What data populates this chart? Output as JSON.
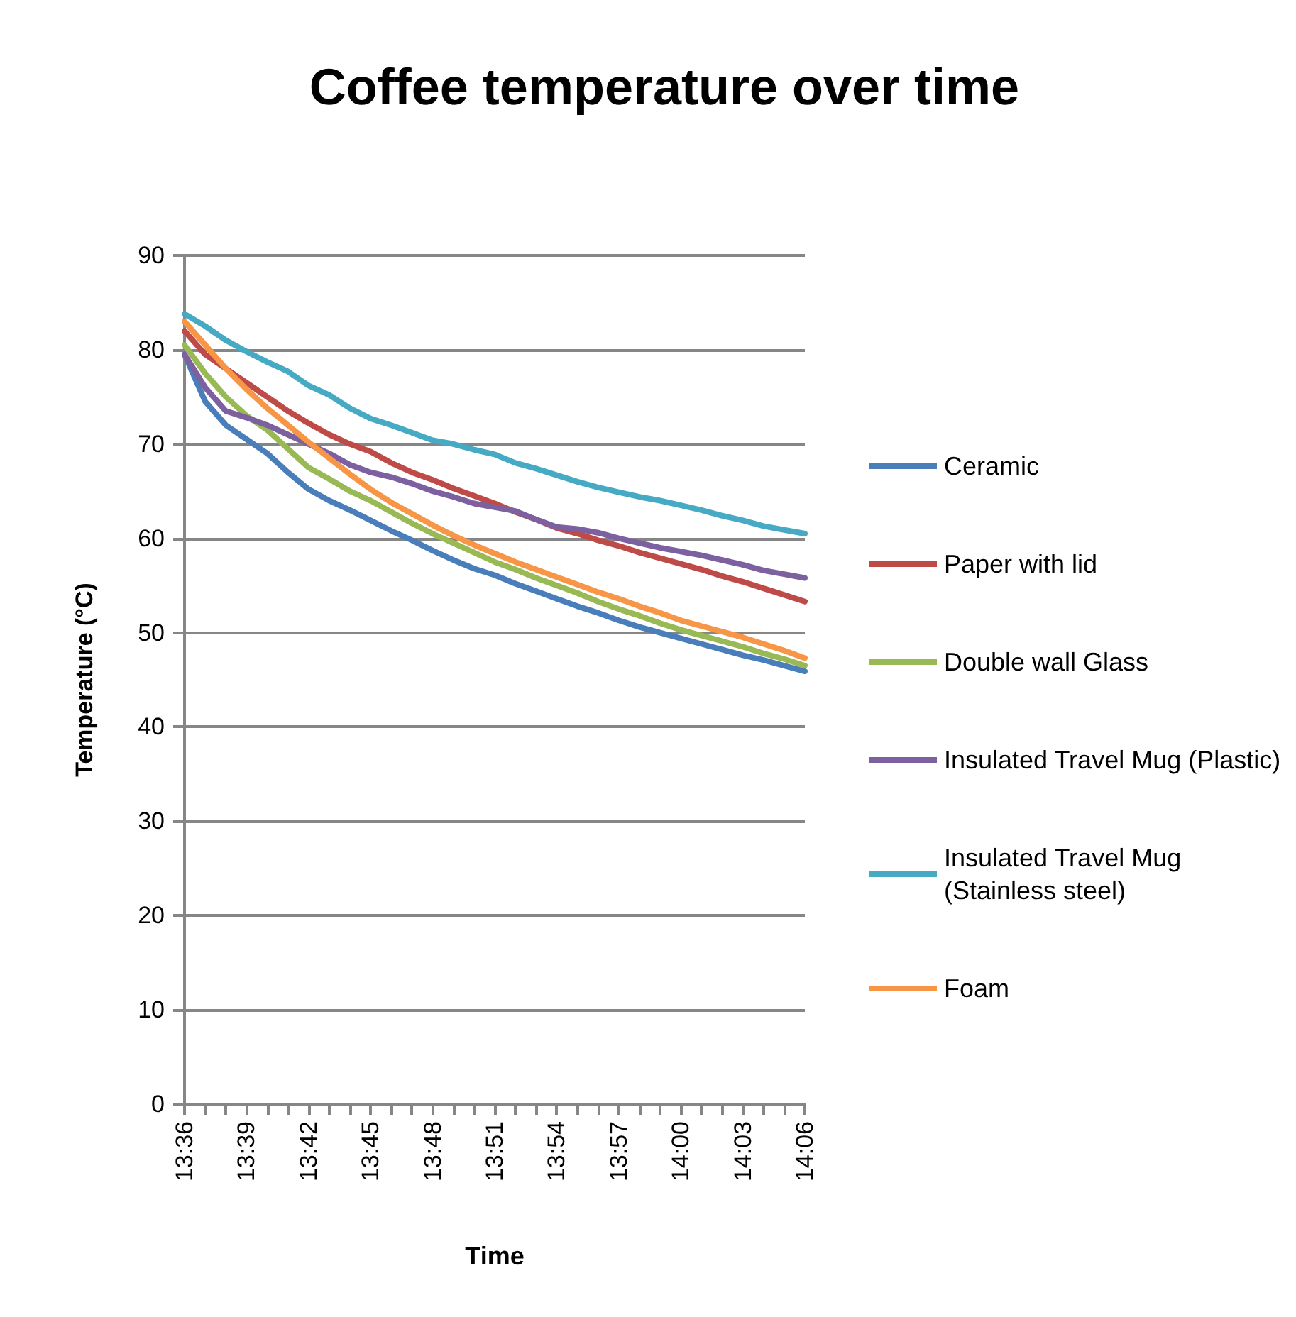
{
  "chart_data": {
    "type": "line",
    "title": "Coffee temperature over time",
    "xlabel": "Time",
    "ylabel": "Temperature (°C)",
    "categories": [
      "13:36",
      null,
      null,
      "13:39",
      null,
      null,
      "13:42",
      null,
      null,
      "13:45",
      null,
      null,
      "13:48",
      null,
      null,
      "13:51",
      null,
      null,
      "13:54",
      null,
      null,
      "13:57",
      null,
      null,
      "14:00",
      null,
      null,
      "14:03",
      null,
      null,
      "14:06"
    ],
    "series": [
      {
        "name": "Ceramic",
        "color": "#4a7ebb",
        "values": [
          79.5,
          74.5,
          72,
          70.5,
          69,
          67,
          65.2,
          64,
          63,
          61.9,
          60.8,
          59.8,
          58.7,
          57.7,
          56.8,
          56.1,
          55.2,
          54.4,
          53.6,
          52.8,
          52.1,
          51.3,
          50.6,
          50,
          49.4,
          48.8,
          48.2,
          47.6,
          47.1,
          46.5,
          45.9
        ]
      },
      {
        "name": "Paper with lid",
        "color": "#be4b48",
        "values": [
          82,
          79.5,
          78,
          76.5,
          75,
          73.5,
          72.2,
          71,
          70,
          69.2,
          68,
          67,
          66.2,
          65.3,
          64.5,
          63.7,
          62.8,
          62,
          61.1,
          60.5,
          59.8,
          59.2,
          58.5,
          57.9,
          57.3,
          56.7,
          56,
          55.4,
          54.7,
          54,
          53.3
        ]
      },
      {
        "name": "Double wall Glass",
        "color": "#98b954",
        "values": [
          80.5,
          77.5,
          75,
          73,
          71.5,
          69.5,
          67.5,
          66.3,
          65,
          64,
          62.8,
          61.6,
          60.5,
          59.5,
          58.5,
          57.5,
          56.7,
          55.8,
          55,
          54.2,
          53.3,
          52.5,
          51.8,
          51,
          50.3,
          49.7,
          49.1,
          48.5,
          47.8,
          47.2,
          46.5
        ]
      },
      {
        "name": "Insulated Travel Mug (Plastic)",
        "color": "#7d60a0",
        "values": [
          79.5,
          76,
          73.5,
          72.8,
          72,
          71,
          70,
          69,
          67.8,
          67,
          66.5,
          65.8,
          65,
          64.4,
          63.7,
          63.3,
          62.9,
          62,
          61.2,
          61,
          60.6,
          60,
          59.5,
          59,
          58.6,
          58.2,
          57.7,
          57.2,
          56.6,
          56.2,
          55.8
        ]
      },
      {
        "name": "Insulated Travel Mug (Stainless steel)",
        "color": "#46aac5",
        "values": [
          83.8,
          82.5,
          81,
          79.8,
          78.7,
          77.7,
          76.2,
          75.2,
          73.8,
          72.7,
          72,
          71.2,
          70.4,
          70,
          69.4,
          68.9,
          68,
          67.4,
          66.7,
          66,
          65.4,
          64.9,
          64.4,
          64,
          63.5,
          63,
          62.4,
          61.9,
          61.3,
          60.9,
          60.5
        ]
      },
      {
        "name": "Foam",
        "color": "#f79646",
        "values": [
          83,
          80.5,
          78,
          75.8,
          73.8,
          72,
          70.2,
          68.5,
          66.8,
          65.2,
          63.8,
          62.6,
          61.4,
          60.3,
          59.3,
          58.4,
          57.5,
          56.7,
          55.9,
          55.1,
          54.3,
          53.6,
          52.8,
          52.1,
          51.3,
          50.7,
          50.1,
          49.5,
          48.8,
          48.1,
          47.3
        ]
      }
    ],
    "ylim": [
      0,
      90
    ],
    "yticks": [
      0,
      10,
      20,
      30,
      40,
      50,
      60,
      70,
      80,
      90
    ],
    "grid": "y",
    "legend": "right",
    "marker": "none",
    "line_style": "solid"
  }
}
